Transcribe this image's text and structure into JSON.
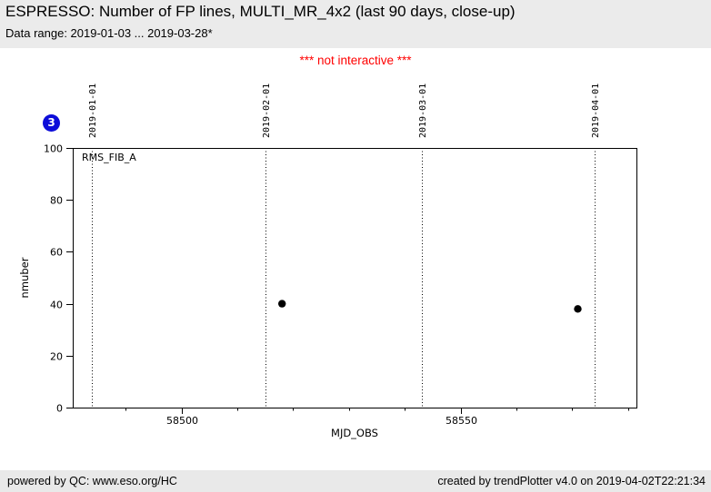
{
  "header": {
    "title": "ESPRESSO: Number of FP lines, MULTI_MR_4x2 (last 90 days, close-up)",
    "subtitle": "Data range: 2019-01-03 ... 2019-03-28*"
  },
  "notice": {
    "text": "*** not interactive ***",
    "color": "#ff0000"
  },
  "badge": {
    "count": "3",
    "color": "#0d0dd9"
  },
  "chart_data": {
    "type": "scatter",
    "title": "ESPRESSO: Number of FP lines, MULTI_MR_4x2 (last 90 days, close-up)",
    "series_label": "RMS_FIB_A",
    "xlabel": "MJD_OBS",
    "ylabel": "nmuber",
    "xlim": [
      58480.5,
      58581.5
    ],
    "ylim": [
      0,
      100
    ],
    "x_major_ticks": [
      58500,
      58550
    ],
    "x_minor_tick_step": 10,
    "y_ticks": [
      0,
      20,
      40,
      60,
      80,
      100
    ],
    "top_date_lines": [
      {
        "label": "2019-01-01",
        "x": 58484
      },
      {
        "label": "2019-02-01",
        "x": 58515
      },
      {
        "label": "2019-03-01",
        "x": 58543
      },
      {
        "label": "2019-04-01",
        "x": 58574
      }
    ],
    "points": [
      {
        "x": 58518,
        "y": 40
      },
      {
        "x": 58571,
        "y": 38
      }
    ],
    "marker": {
      "shape": "circle",
      "color": "#000000",
      "radius": 4.2
    },
    "grid": "vertical dotted lines at month boundaries",
    "legend": "none"
  },
  "footer": {
    "left": "powered by QC: www.eso.org/HC",
    "right": "created by trendPlotter v4.0 on 2019-04-02T22:21:34"
  }
}
